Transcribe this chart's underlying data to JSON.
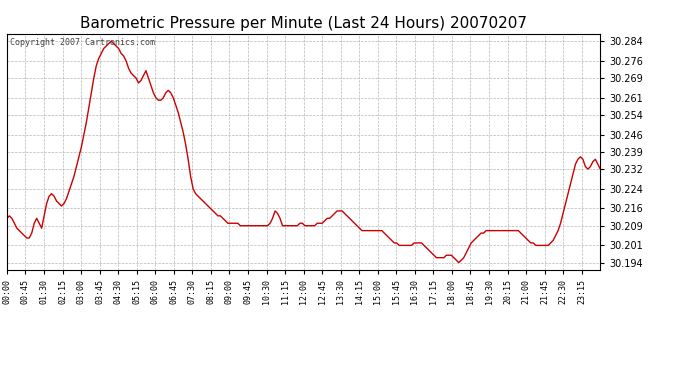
{
  "title": "Barometric Pressure per Minute (Last 24 Hours) 20070207",
  "copyright": "Copyright 2007 Cartronics.com",
  "line_color": "#cc0000",
  "bg_color": "#ffffff",
  "plot_bg_color": "#ffffff",
  "grid_color": "#999999",
  "title_fontsize": 11,
  "yticks": [
    30.194,
    30.201,
    30.209,
    30.216,
    30.224,
    30.232,
    30.239,
    30.246,
    30.254,
    30.261,
    30.269,
    30.276,
    30.284
  ],
  "ylim": [
    30.191,
    30.287
  ],
  "x_labels": [
    "00:00",
    "00:45",
    "01:30",
    "02:15",
    "03:00",
    "03:45",
    "04:30",
    "05:15",
    "06:00",
    "06:45",
    "07:30",
    "08:15",
    "09:00",
    "09:45",
    "10:30",
    "11:15",
    "12:00",
    "12:45",
    "13:30",
    "14:15",
    "15:00",
    "15:45",
    "16:30",
    "17:15",
    "18:00",
    "18:45",
    "19:30",
    "20:15",
    "21:00",
    "21:45",
    "22:30",
    "23:15"
  ],
  "pressure_values": [
    30.212,
    30.213,
    30.212,
    30.21,
    30.208,
    30.207,
    30.206,
    30.205,
    30.204,
    30.204,
    30.206,
    30.21,
    30.212,
    30.21,
    30.208,
    30.213,
    30.218,
    30.221,
    30.222,
    30.221,
    30.219,
    30.218,
    30.217,
    30.218,
    30.22,
    30.223,
    30.226,
    30.229,
    30.233,
    30.237,
    30.241,
    30.246,
    30.251,
    30.257,
    30.263,
    30.269,
    30.274,
    30.277,
    30.279,
    30.281,
    30.282,
    30.283,
    30.284,
    30.283,
    30.282,
    30.281,
    30.279,
    30.278,
    30.276,
    30.273,
    30.271,
    30.27,
    30.269,
    30.267,
    30.268,
    30.27,
    30.272,
    30.269,
    30.266,
    30.263,
    30.261,
    30.26,
    30.26,
    30.261,
    30.263,
    30.264,
    30.263,
    30.261,
    30.258,
    30.255,
    30.251,
    30.247,
    30.242,
    30.236,
    30.229,
    30.224,
    30.222,
    30.221,
    30.22,
    30.219,
    30.218,
    30.217,
    30.216,
    30.215,
    30.214,
    30.213,
    30.213,
    30.212,
    30.211,
    30.21,
    30.21,
    30.21,
    30.21,
    30.21,
    30.209,
    30.209,
    30.209,
    30.209,
    30.209,
    30.209,
    30.209,
    30.209,
    30.209,
    30.209,
    30.209,
    30.209,
    30.21,
    30.212,
    30.215,
    30.214,
    30.212,
    30.209,
    30.209,
    30.209,
    30.209,
    30.209,
    30.209,
    30.209,
    30.21,
    30.21,
    30.209,
    30.209,
    30.209,
    30.209,
    30.209,
    30.21,
    30.21,
    30.21,
    30.211,
    30.212,
    30.212,
    30.213,
    30.214,
    30.215,
    30.215,
    30.215,
    30.214,
    30.213,
    30.212,
    30.211,
    30.21,
    30.209,
    30.208,
    30.207,
    30.207,
    30.207,
    30.207,
    30.207,
    30.207,
    30.207,
    30.207,
    30.207,
    30.206,
    30.205,
    30.204,
    30.203,
    30.202,
    30.202,
    30.201,
    30.201,
    30.201,
    30.201,
    30.201,
    30.201,
    30.202,
    30.202,
    30.202,
    30.202,
    30.201,
    30.2,
    30.199,
    30.198,
    30.197,
    30.196,
    30.196,
    30.196,
    30.196,
    30.197,
    30.197,
    30.197,
    30.196,
    30.195,
    30.194,
    30.195,
    30.196,
    30.198,
    30.2,
    30.202,
    30.203,
    30.204,
    30.205,
    30.206,
    30.206,
    30.207,
    30.207,
    30.207,
    30.207,
    30.207,
    30.207,
    30.207,
    30.207,
    30.207,
    30.207,
    30.207,
    30.207,
    30.207,
    30.207,
    30.206,
    30.205,
    30.204,
    30.203,
    30.202,
    30.202,
    30.201,
    30.201,
    30.201,
    30.201,
    30.201,
    30.201,
    30.202,
    30.203,
    30.205,
    30.207,
    30.21,
    30.214,
    30.218,
    30.222,
    30.226,
    30.23,
    30.234,
    30.236,
    30.237,
    30.236,
    30.233,
    30.232,
    30.233,
    30.235,
    30.236,
    30.234,
    30.232
  ]
}
